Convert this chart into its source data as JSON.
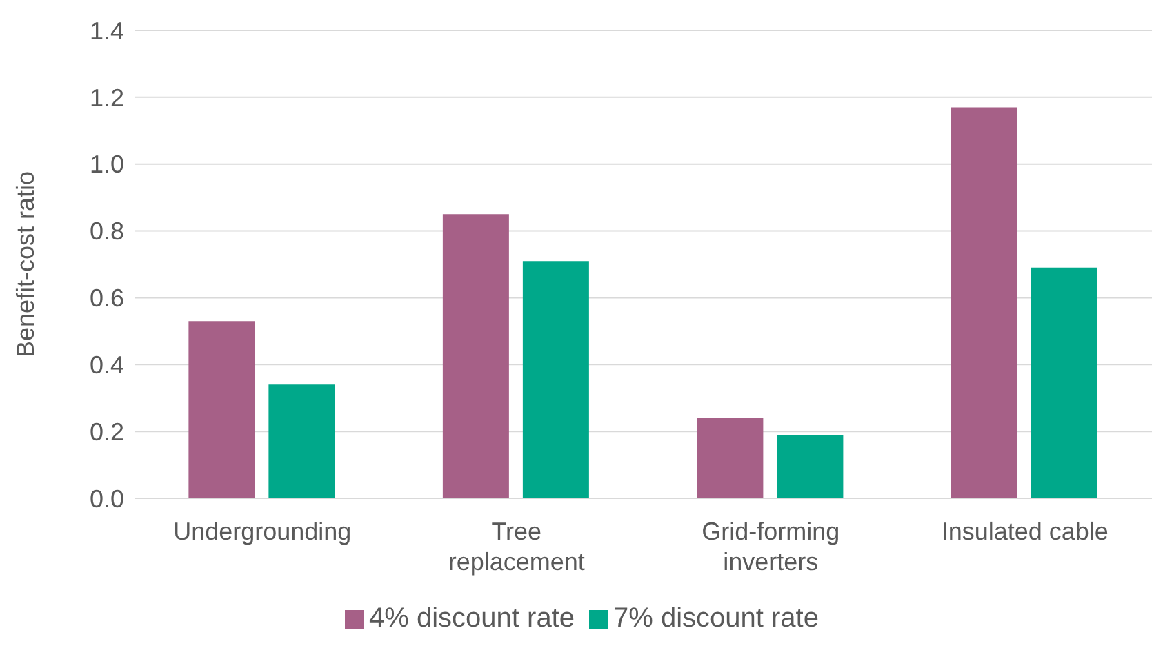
{
  "chart_data": {
    "type": "bar",
    "ylabel": "Benefit-cost ratio",
    "categories": [
      "Undergrounding",
      "Tree replacement",
      "Grid-forming inverters",
      "Insulated cable"
    ],
    "series": [
      {
        "name": "4% discount rate",
        "color": "#a66087",
        "values": [
          0.53,
          0.85,
          0.24,
          1.17
        ]
      },
      {
        "name": "7% discount rate",
        "color": "#00a88a",
        "values": [
          0.34,
          0.71,
          0.19,
          0.69
        ]
      }
    ],
    "ylim": [
      0,
      1.4
    ],
    "yticks": [
      {
        "value": 0,
        "label": "0.0"
      },
      {
        "value": 0.2,
        "label": "0.2"
      },
      {
        "value": 0.4,
        "label": "0.4"
      },
      {
        "value": 0.6,
        "label": "0.6"
      },
      {
        "value": 0.8,
        "label": "0.8"
      },
      {
        "value": 1,
        "label": "1.0"
      },
      {
        "value": 1.2,
        "label": "1.2"
      },
      {
        "value": 1.4,
        "label": "1.4"
      }
    ],
    "grid": "y",
    "legend": "bottom"
  }
}
